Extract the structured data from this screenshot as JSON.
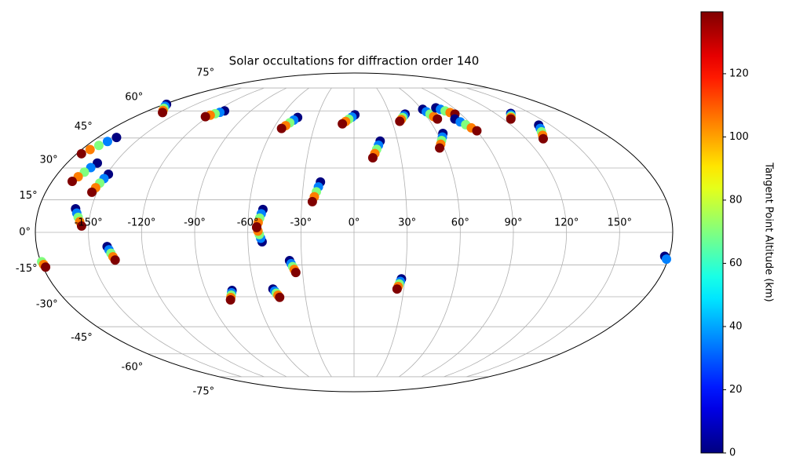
{
  "chart_data": {
    "type": "scatter",
    "projection": "mollweide",
    "title": "Solar occultations for diffraction order 140",
    "xlim": [
      -180,
      180
    ],
    "ylim": [
      -90,
      90
    ],
    "grid": true,
    "xticks": [
      {
        "value": -150,
        "label": "-150°"
      },
      {
        "value": -120,
        "label": "-120°"
      },
      {
        "value": -90,
        "label": "-90°"
      },
      {
        "value": -60,
        "label": "-60°"
      },
      {
        "value": -30,
        "label": "-30°"
      },
      {
        "value": 0,
        "label": "0°"
      },
      {
        "value": 30,
        "label": "30°"
      },
      {
        "value": 60,
        "label": "60°"
      },
      {
        "value": 90,
        "label": "90°"
      },
      {
        "value": 120,
        "label": "120°"
      },
      {
        "value": 150,
        "label": "150°"
      }
    ],
    "yticks": [
      {
        "value": -75,
        "label": "-75°"
      },
      {
        "value": -60,
        "label": "-60°"
      },
      {
        "value": -45,
        "label": "-45°"
      },
      {
        "value": -30,
        "label": "-30°"
      },
      {
        "value": -15,
        "label": "-15°"
      },
      {
        "value": 0,
        "label": "0°"
      },
      {
        "value": 15,
        "label": "15°"
      },
      {
        "value": 30,
        "label": "30°"
      },
      {
        "value": 45,
        "label": "45°"
      },
      {
        "value": 60,
        "label": "60°"
      },
      {
        "value": 75,
        "label": "75°"
      }
    ],
    "altitudes": [
      0,
      35,
      70,
      105,
      140
    ],
    "tracks": [
      {
        "lon": [
          -178,
          -174.5,
          -171,
          -167.5,
          -164
        ],
        "lat": [
          64,
          62.75,
          61.5,
          60.25,
          59
        ]
      },
      {
        "lon": [
          -113,
          -115.25,
          -117.5,
          -119.75,
          -122
        ],
        "lat": [
          60,
          59.15,
          58.3,
          57.45,
          56.6
        ]
      },
      {
        "lon": [
          -167,
          -169.5,
          -172,
          -174.5,
          -177
        ],
        "lat": [
          45.3,
          43.2,
          41.2,
          39.1,
          37
        ]
      },
      {
        "lon": [
          -161,
          -162.75,
          -164.5,
          -166.25,
          -168
        ],
        "lat": [
          32.4,
          30.2,
          28,
          25.8,
          23.6
        ]
      },
      {
        "lon": [
          -149,
          -150,
          -151,
          -152,
          -153
        ],
        "lat": [
          27,
          24.9,
          22.8,
          20.6,
          18.5
        ]
      },
      {
        "lon": [
          -159,
          -157.75,
          -156.5,
          -155.25,
          -154
        ],
        "lat": [
          10.8,
          8.8,
          6.9,
          4.9,
          2.9
        ]
      },
      {
        "lon": [
          -140,
          -139.25,
          -138.5,
          -137.75,
          -137
        ],
        "lat": [
          -6.5,
          -8,
          -9.6,
          -11.2,
          -12.7
        ]
      },
      {
        "lon": [
          177.5,
          179,
          -179.5,
          -179,
          -178.5
        ],
        "lat": [
          -11,
          -12.3,
          -13.5,
          -14.8,
          -16
        ]
      },
      {
        "lon": [
          -52,
          -52.75,
          -53.5,
          -54.25,
          -55
        ],
        "lat": [
          10.5,
          8.5,
          6.5,
          4.5,
          2.5
        ]
      },
      {
        "lon": [
          -52,
          -52.75,
          -53.5,
          -54.25,
          -55
        ],
        "lat": [
          -4.3,
          -2.7,
          -1,
          0.6,
          2.2
        ]
      },
      {
        "lon": [
          -37,
          -36.25,
          -35.5,
          -34.75,
          -34
        ],
        "lat": [
          -13,
          -14.4,
          -15.75,
          -17.1,
          -18.5
        ]
      },
      {
        "lon": [
          -49,
          -48.25,
          -47.5,
          -46.75,
          -46
        ],
        "lat": [
          -26.3,
          -27.3,
          -28.3,
          -29.3,
          -30.3
        ]
      },
      {
        "lon": [
          -74,
          -74.75,
          -75.5,
          -76.25,
          -77
        ],
        "lat": [
          -27,
          -28.1,
          -29.25,
          -30.4,
          -31.5
        ]
      },
      {
        "lon": [
          -20,
          -21,
          -22,
          -23,
          -24
        ],
        "lat": [
          23.3,
          21,
          18.7,
          16.4,
          14.1
        ]
      },
      {
        "lon": [
          -46,
          -48,
          -50,
          -52,
          -54
        ],
        "lat": [
          56.2,
          54.7,
          53.2,
          51.6,
          50.1
        ]
      },
      {
        "lon": [
          0.7,
          -1.7,
          -4.2,
          -6.6,
          -9
        ],
        "lat": [
          57.7,
          56.4,
          55.2,
          53.9,
          52.6
        ]
      },
      {
        "lon": [
          18,
          16.5,
          15,
          13.5,
          12
        ],
        "lat": [
          43.4,
          41.3,
          39.2,
          37.1,
          35
        ]
      },
      {
        "lon": [
          43,
          41.25,
          39.5,
          37.75,
          36
        ],
        "lat": [
          58.1,
          57.1,
          56.1,
          55,
          54
        ]
      },
      {
        "lon": [
          61,
          62.5,
          64,
          65.5,
          67
        ],
        "lat": [
          60.9,
          59.5,
          58.1,
          56.7,
          55.3
        ]
      },
      {
        "lon": [
          74,
          76.75,
          79.5,
          82.25,
          85
        ],
        "lat": [
          61.8,
          60.9,
          60,
          59,
          58.1
        ]
      },
      {
        "lon": [
          81,
          83.25,
          85.5,
          87.75,
          90
        ],
        "lat": [
          55.3,
          53.7,
          52.1,
          50.4,
          48.8
        ]
      },
      {
        "lon": [
          64,
          62.25,
          60.5,
          58.75,
          57
        ],
        "lat": [
          47.4,
          45.5,
          43.7,
          41.8,
          39.9
        ]
      },
      {
        "lon": [
          133,
          131.25,
          129.5,
          127.75,
          126
        ],
        "lat": [
          58.5,
          57.7,
          56.9,
          56.1,
          55.3
        ]
      },
      {
        "lon": [
          141,
          138.75,
          136.5,
          134.25,
          132
        ],
        "lat": [
          51.9,
          50.1,
          48.3,
          46.4,
          44.6
        ]
      },
      {
        "lon": [
          28,
          27.5,
          27,
          26.5,
          26
        ],
        "lat": [
          -21.5,
          -22.7,
          -23.9,
          -25.1,
          -26.3
        ]
      }
    ],
    "colorbar": {
      "label": "Tangent Point Altitude (km)",
      "cmap": "jet",
      "lim": [
        0,
        139.6
      ],
      "ticks": [
        0,
        20,
        40,
        60,
        80,
        100,
        120
      ]
    }
  }
}
